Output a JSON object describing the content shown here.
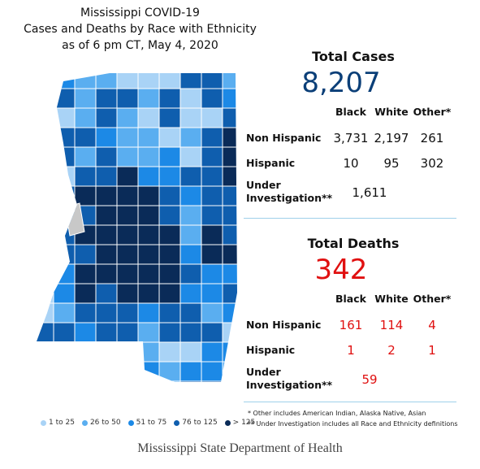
{
  "header": {
    "title": "Mississippi COVID-19",
    "subtitle": "Cases and Deaths by Race with Ethnicity",
    "date": "as of 6 pm CT, May 4, 2020"
  },
  "map_legend": [
    {
      "label": "1 to 25",
      "color": "#a9d3f6"
    },
    {
      "label": "26 to 50",
      "color": "#5aaef0"
    },
    {
      "label": "51 to 75",
      "color": "#1c89e6"
    },
    {
      "label": "76 to 125",
      "color": "#0f5eae"
    },
    {
      "label": "> 125",
      "color": "#0a2b58"
    }
  ],
  "cases": {
    "title": "Total Cases",
    "total": "8,207",
    "columns": [
      "Black",
      "White",
      "Other*"
    ],
    "rows": [
      {
        "label": "Non Hispanic",
        "values": [
          "3,731",
          "2,197",
          "261"
        ]
      },
      {
        "label": "Hispanic",
        "values": [
          "10",
          "95",
          "302"
        ]
      },
      {
        "label": "Under Investigation**",
        "values": [
          "1,611"
        ]
      }
    ]
  },
  "deaths": {
    "title": "Total Deaths",
    "total": "342",
    "columns": [
      "Black",
      "White",
      "Other*"
    ],
    "rows": [
      {
        "label": "Non Hispanic",
        "values": [
          "161",
          "114",
          "4"
        ]
      },
      {
        "label": "Hispanic",
        "values": [
          "1",
          "2",
          "1"
        ]
      },
      {
        "label": "Under Investigation**",
        "values": [
          "59"
        ]
      }
    ]
  },
  "footnotes": [
    "* Other includes American Indian, Alaska Native, Asian",
    "** Under Investigation includes all Race and Ethnicity definitions"
  ],
  "footer": "Mississippi State Department of Health"
}
